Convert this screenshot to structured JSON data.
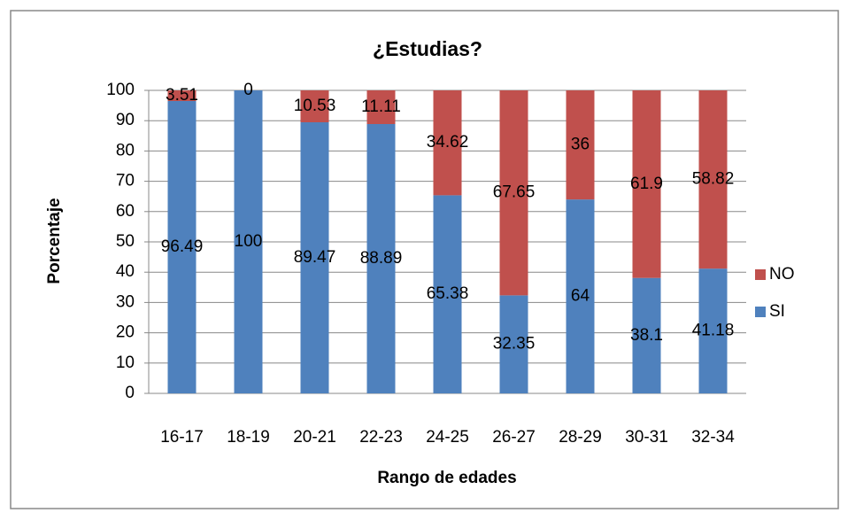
{
  "chart_data": {
    "type": "stacked_bar",
    "title": "¿Estudias?",
    "x_label": "Rango de edades",
    "y_label": "Porcentaje",
    "categories": [
      "16-17",
      "18-19",
      "20-21",
      "22-23",
      "24-25",
      "26-27",
      "28-29",
      "30-31",
      "32-34"
    ],
    "series": [
      {
        "name": "SI",
        "color": "#4f81bd",
        "values": [
          96.49,
          100,
          89.47,
          88.89,
          65.38,
          32.35,
          64,
          38.1,
          41.18
        ]
      },
      {
        "name": "NO",
        "color": "#c0504d",
        "values": [
          3.51,
          0,
          10.53,
          11.11,
          34.62,
          67.65,
          36,
          61.9,
          58.82
        ]
      }
    ],
    "ylim": [
      0,
      100
    ],
    "yticks": [
      0,
      10,
      20,
      30,
      40,
      50,
      60,
      70,
      80,
      90,
      100
    ],
    "grid": true,
    "legend": "right"
  }
}
